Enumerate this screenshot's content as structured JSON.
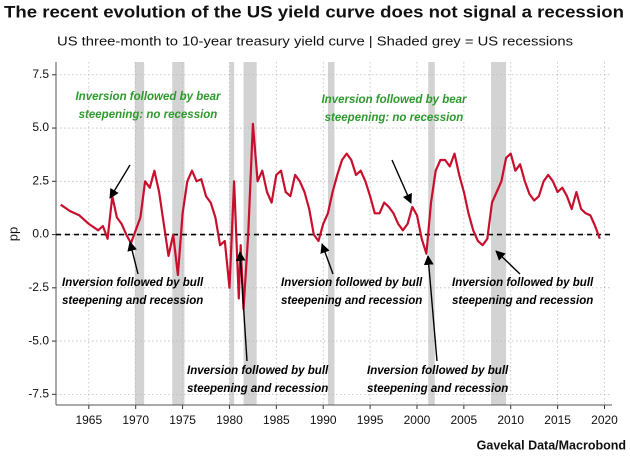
{
  "chart_data": {
    "type": "line",
    "title": "The recent evolution of the US yield curve does not signal a recession",
    "subtitle": "US three-month to 10-year treasury yield curve | Shaded grey = US recessions",
    "ylabel": "pp",
    "source": "Gavekal Data/Macrobond",
    "xlim": [
      1961.5,
      2020.8
    ],
    "ylim": [
      -8,
      8.1
    ],
    "xticks": [
      1965,
      1970,
      1975,
      1980,
      1985,
      1990,
      1995,
      2000,
      2005,
      2010,
      2015,
      2020
    ],
    "yticks": [
      7.5,
      {
        "value": 5,
        "label": "5.0"
      },
      2.5,
      {
        "value": 0,
        "label": "0.0"
      },
      -2.5,
      {
        "value": -5,
        "label": "-5.0"
      },
      -7.5
    ],
    "grid": true,
    "hline": 0,
    "recession_color": "#d3d3d3",
    "recessions": [
      [
        1969.9,
        1970.9
      ],
      [
        1973.9,
        1975.2
      ],
      [
        1980.0,
        1980.5
      ],
      [
        1981.5,
        1982.9
      ],
      [
        1990.5,
        1991.2
      ],
      [
        2001.2,
        2001.9
      ],
      [
        2007.9,
        2009.5
      ]
    ],
    "x": [
      1962,
      1963,
      1964,
      1965,
      1966,
      1966.5,
      1967,
      1967.5,
      1968,
      1968.5,
      1969,
      1969.5,
      1970,
      1970.5,
      1971,
      1971.5,
      1972,
      1972.5,
      1973,
      1973.5,
      1974,
      1974.5,
      1975,
      1975.5,
      1976,
      1976.5,
      1977,
      1977.5,
      1978,
      1978.5,
      1979,
      1979.5,
      1980,
      1980.5,
      1981,
      1981.2,
      1981.5,
      1982,
      1982.5,
      1983,
      1983.5,
      1984,
      1984.5,
      1985,
      1985.5,
      1986,
      1986.5,
      1987,
      1987.5,
      1988,
      1988.5,
      1989,
      1989.5,
      1990,
      1990.5,
      1991,
      1991.5,
      1992,
      1992.5,
      1993,
      1993.5,
      1994,
      1994.5,
      1995,
      1995.5,
      1996,
      1996.5,
      1997,
      1997.5,
      1998,
      1998.5,
      1999,
      1999.5,
      2000,
      2000.5,
      2001,
      2001.5,
      2002,
      2002.5,
      2003,
      2003.5,
      2004,
      2004.5,
      2005,
      2005.5,
      2006,
      2006.5,
      2007,
      2007.5,
      2008,
      2008.5,
      2009,
      2009.5,
      2010,
      2010.5,
      2011,
      2011.5,
      2012,
      2012.5,
      2013,
      2013.5,
      2014,
      2014.5,
      2015,
      2015.5,
      2016,
      2016.5,
      2017,
      2017.5,
      2018,
      2018.5,
      2019,
      2019.5
    ],
    "series": [
      {
        "color": "#c8102e",
        "values": [
          1.4,
          1.1,
          0.9,
          0.5,
          0.2,
          0.4,
          -0.2,
          1.8,
          0.8,
          0.5,
          0.0,
          -0.4,
          0.2,
          0.8,
          2.5,
          2.2,
          3.0,
          2.0,
          0.5,
          -1.0,
          0.0,
          -1.9,
          1.0,
          2.5,
          3.0,
          2.5,
          2.6,
          1.8,
          1.5,
          0.8,
          -0.5,
          -0.3,
          -2.5,
          2.5,
          -3.0,
          -0.5,
          -3.5,
          0.0,
          5.2,
          2.5,
          3.0,
          2.0,
          1.5,
          2.8,
          3.0,
          2.0,
          1.8,
          2.8,
          2.5,
          2.0,
          1.2,
          0.0,
          -0.3,
          0.5,
          1.0,
          2.0,
          2.8,
          3.5,
          3.8,
          3.5,
          2.8,
          3.0,
          2.5,
          1.8,
          1.0,
          1.0,
          1.5,
          1.3,
          1.0,
          0.5,
          0.2,
          0.5,
          1.3,
          0.9,
          -0.2,
          -0.9,
          1.5,
          3.0,
          3.5,
          3.5,
          3.2,
          3.8,
          2.8,
          2.0,
          1.0,
          0.2,
          -0.3,
          -0.5,
          -0.2,
          1.5,
          2.0,
          2.5,
          3.6,
          3.8,
          3.0,
          3.3,
          2.5,
          1.9,
          1.6,
          1.8,
          2.5,
          2.8,
          2.5,
          2.0,
          2.2,
          1.8,
          1.2,
          2.0,
          1.2,
          1.0,
          0.9,
          0.4,
          -0.2
        ]
      }
    ],
    "annotations": [
      {
        "text": [
          "Inversion followed by bear",
          "steepening: no recession"
        ],
        "color": "#2e9a2e"
      },
      {
        "text": [
          "Inversion followed by bear",
          "steepening: no recession"
        ],
        "color": "#2e9a2e"
      },
      {
        "text": [
          "Inversion followed by bull",
          "steepening and recession"
        ],
        "color": "#000000"
      },
      {
        "text": [
          "Inversion followed by bull",
          "steepening and recession"
        ],
        "color": "#000000"
      },
      {
        "text": [
          "Inversion followed by bull",
          "steepening and recession"
        ],
        "color": "#000000"
      },
      {
        "text": [
          "Inversion followed by bull",
          "steepening and recession"
        ],
        "color": "#000000"
      },
      {
        "text": [
          "Inversion followed by bull",
          "steepening and recession"
        ],
        "color": "#000000"
      }
    ]
  }
}
